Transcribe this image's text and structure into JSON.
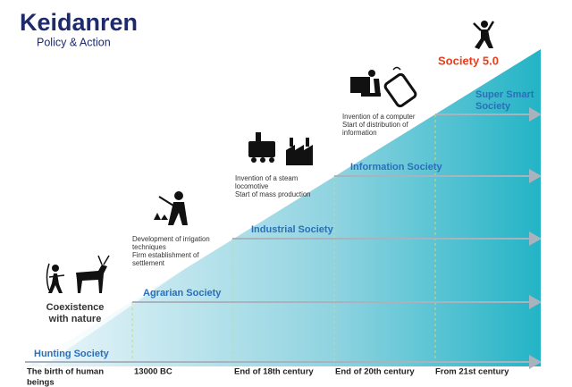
{
  "header": {
    "brand": "Keidanren",
    "tagline": "Policy & Action"
  },
  "title": "Society 5.0",
  "stages": [
    [
      "Hunting Society"
    ],
    [
      "Agrarian Society"
    ],
    [
      "Industrial Society"
    ],
    [
      "Information Society"
    ],
    [
      "Super Smart",
      "Society"
    ]
  ],
  "timeline": [
    [
      "The birth of human",
      "beings"
    ],
    [
      "13000 BC"
    ],
    [
      "End of 18th century"
    ],
    [
      "End of 20th century"
    ],
    [
      "From 21st century"
    ]
  ],
  "milestones": [
    [
      "Coexistence",
      "with nature"
    ],
    [
      "Development of irrigation",
      "techniques",
      "Firm establishment of",
      "settlement"
    ],
    [
      "Invention of a steam",
      "locomotive",
      "Start of mass production"
    ],
    [
      "Invention of a computer",
      "Start of distribution of",
      "information"
    ]
  ]
}
